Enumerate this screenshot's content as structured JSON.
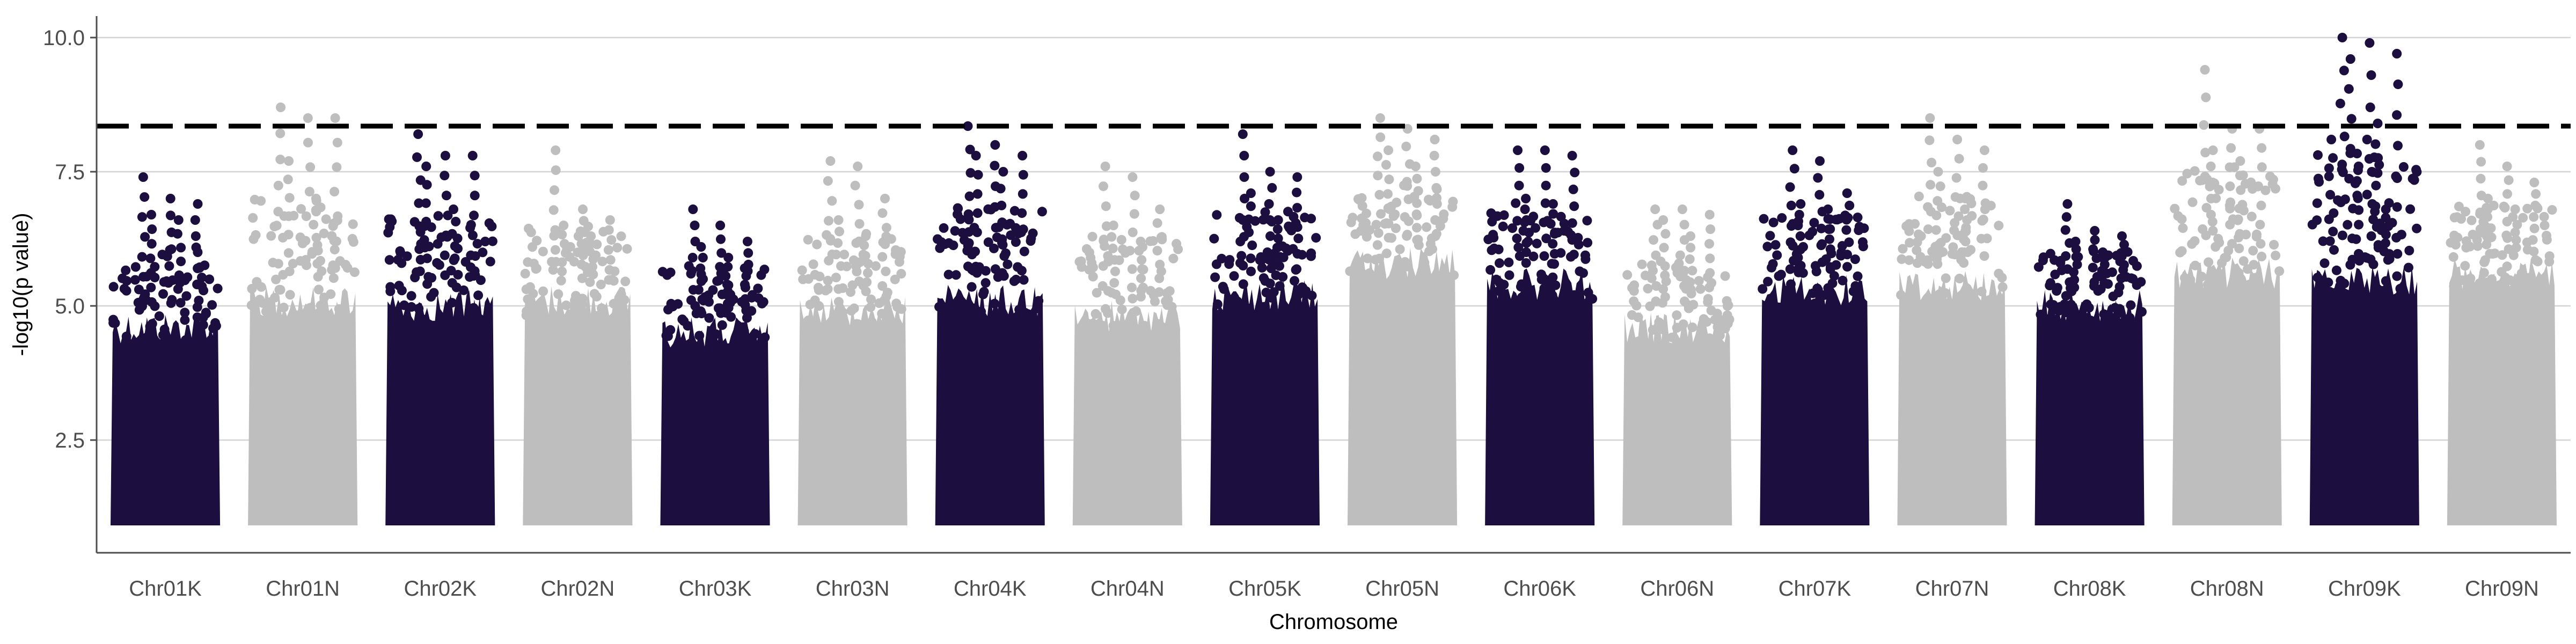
{
  "chart_data": {
    "type": "scatter",
    "subtype": "manhattan",
    "xlabel": "Chromosome",
    "ylabel": "-log10(p value)",
    "ylim": [
      0.4,
      10.4
    ],
    "yticks": [
      2.5,
      5.0,
      7.5,
      10.0
    ],
    "ytick_labels": [
      "2.5",
      "5.0",
      "7.5",
      "10.0"
    ],
    "grid": "horizontal major lines at y ticks",
    "legend": "none",
    "threshold": {
      "y": 8.35,
      "style": "dashed",
      "color": "#000000"
    },
    "colors": {
      "dark": "#1c0f3f",
      "light": "#bebebe",
      "grid": "#d4d4d4",
      "axis": "#4d4d4d"
    },
    "min_value": 1.0,
    "chromosomes": [
      {
        "name": "Chr01K",
        "color": "dark",
        "dense_top": 4.8,
        "max": 7.4,
        "peaks": [
          7.4,
          7.0,
          6.9,
          6.7,
          6.6
        ]
      },
      {
        "name": "Chr01N",
        "color": "light",
        "dense_top": 5.3,
        "max": 8.7,
        "peaks": [
          8.7,
          8.5,
          8.5,
          7.7,
          7.0
        ]
      },
      {
        "name": "Chr02K",
        "color": "dark",
        "dense_top": 5.2,
        "max": 8.2,
        "peaks": [
          8.2,
          7.8,
          7.8,
          7.6,
          6.8
        ]
      },
      {
        "name": "Chr02N",
        "color": "light",
        "dense_top": 5.3,
        "max": 7.9,
        "peaks": [
          7.9,
          6.8,
          6.6,
          6.5,
          6.3
        ]
      },
      {
        "name": "Chr03K",
        "color": "dark",
        "dense_top": 4.7,
        "max": 6.8,
        "peaks": [
          6.8,
          6.5,
          6.2,
          6.1,
          5.9
        ]
      },
      {
        "name": "Chr03N",
        "color": "light",
        "dense_top": 5.1,
        "max": 7.7,
        "peaks": [
          7.7,
          7.6,
          7.0,
          6.6,
          6.3
        ]
      },
      {
        "name": "Chr04K",
        "color": "dark",
        "dense_top": 5.3,
        "max": 8.35,
        "peaks": [
          8.35,
          8.0,
          7.8,
          7.8,
          7.5
        ]
      },
      {
        "name": "Chr04N",
        "color": "light",
        "dense_top": 5.0,
        "max": 7.6,
        "peaks": [
          7.6,
          7.4,
          6.8,
          6.5,
          6.2
        ]
      },
      {
        "name": "Chr05K",
        "color": "dark",
        "dense_top": 5.4,
        "max": 8.2,
        "peaks": [
          8.2,
          7.5,
          7.4,
          7.1,
          6.6
        ]
      },
      {
        "name": "Chr05N",
        "color": "light",
        "dense_top": 6.0,
        "max": 8.5,
        "peaks": [
          8.5,
          8.3,
          8.1,
          7.9,
          7.6
        ]
      },
      {
        "name": "Chr06K",
        "color": "dark",
        "dense_top": 5.6,
        "max": 7.9,
        "peaks": [
          7.9,
          7.9,
          7.8,
          7.0,
          6.9
        ]
      },
      {
        "name": "Chr06N",
        "color": "light",
        "dense_top": 4.8,
        "max": 6.8,
        "peaks": [
          6.8,
          6.8,
          6.7,
          6.6,
          6.3
        ]
      },
      {
        "name": "Chr07K",
        "color": "dark",
        "dense_top": 5.5,
        "max": 7.9,
        "peaks": [
          7.9,
          7.7,
          7.1,
          6.9,
          6.8
        ]
      },
      {
        "name": "Chr07N",
        "color": "light",
        "dense_top": 5.6,
        "max": 8.5,
        "peaks": [
          8.5,
          8.1,
          7.9,
          7.5,
          7.0
        ]
      },
      {
        "name": "Chr08K",
        "color": "dark",
        "dense_top": 5.2,
        "max": 6.9,
        "peaks": [
          6.9,
          6.4,
          6.3,
          6.2,
          6.0
        ]
      },
      {
        "name": "Chr08N",
        "color": "light",
        "dense_top": 5.8,
        "max": 9.4,
        "peaks": [
          9.4,
          8.3,
          8.3,
          7.9,
          7.7
        ]
      },
      {
        "name": "Chr09K",
        "color": "dark",
        "dense_top": 5.7,
        "max": 10.0,
        "peaks": [
          10.0,
          9.9,
          9.7,
          9.6,
          8.4,
          8.1,
          7.6,
          6.8
        ]
      },
      {
        "name": "Chr09N",
        "color": "light",
        "dense_top": 5.8,
        "max": 8.0,
        "peaks": [
          8.0,
          7.6,
          7.3,
          7.0,
          6.8
        ]
      }
    ]
  }
}
